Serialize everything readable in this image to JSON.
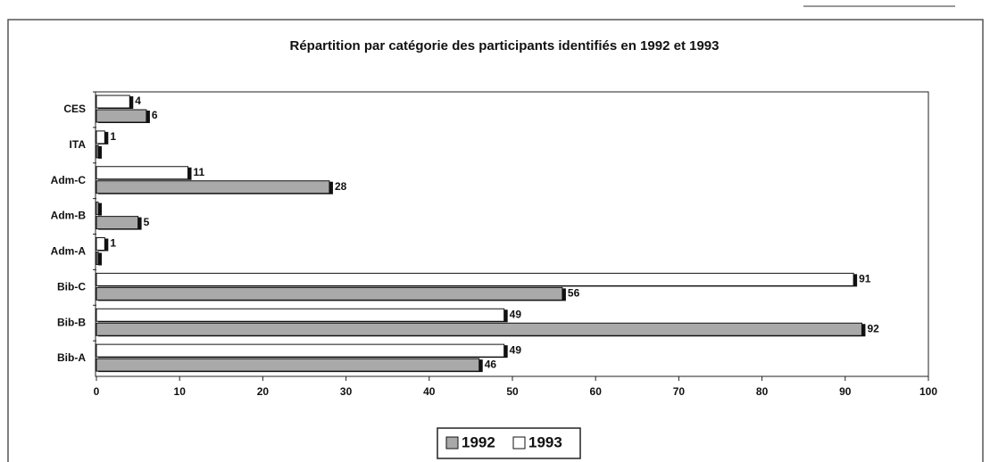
{
  "chart_data": {
    "type": "bar",
    "orientation": "horizontal",
    "title": "Répartition par catégorie des participants identifiés en 1992 et 1993",
    "categories": [
      "Bib-A",
      "Bib-B",
      "Bib-C",
      "Adm-A",
      "Adm-B",
      "Adm-C",
      "ITA",
      "CES"
    ],
    "series": [
      {
        "name": "1992",
        "color": "#a9a9a9",
        "values": [
          46,
          92,
          56,
          0,
          5,
          28,
          0,
          6
        ]
      },
      {
        "name": "1993",
        "color": "#ffffff",
        "values": [
          49,
          49,
          91,
          1,
          0,
          11,
          1,
          4
        ]
      }
    ],
    "xlim": [
      0,
      100
    ],
    "xticks": [
      0,
      10,
      20,
      30,
      40,
      50,
      60,
      70,
      80,
      90,
      100
    ],
    "legend": "bottom"
  }
}
